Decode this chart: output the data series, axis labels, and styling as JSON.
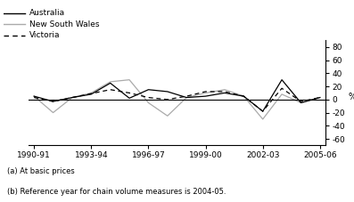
{
  "x_labels": [
    "1990-91",
    "1993-94",
    "1996-97",
    "1999-00",
    "2002-03",
    "2005-06"
  ],
  "x_tick_positions": [
    0,
    3,
    6,
    9,
    12,
    15
  ],
  "australia": [
    5,
    -3,
    3,
    8,
    25,
    2,
    15,
    12,
    3,
    5,
    10,
    5,
    -18,
    30,
    -5,
    3
  ],
  "nsw": [
    5,
    -20,
    3,
    10,
    27,
    30,
    -5,
    -25,
    3,
    10,
    15,
    5,
    -30,
    8,
    -5,
    3
  ],
  "victoria": [
    3,
    -3,
    3,
    9,
    15,
    10,
    3,
    0,
    5,
    12,
    12,
    5,
    -18,
    17,
    -3,
    3
  ],
  "australia_color": "#000000",
  "nsw_color": "#aaaaaa",
  "victoria_color": "#000000",
  "ylim": [
    -70,
    90
  ],
  "yticks": [
    -60,
    -40,
    -20,
    0,
    20,
    40,
    60,
    80
  ],
  "ytick_labels": [
    "-60",
    "-40",
    "-20",
    "0",
    "20",
    "40",
    "60",
    "80"
  ],
  "note1": "(a) At basic prices",
  "note2": "(b) Reference year for chain volume measures is 2004-05.",
  "ylabel": "%",
  "background": "#ffffff",
  "legend_australia": "Australia",
  "legend_nsw": "New South Wales",
  "legend_victoria": "Victoria"
}
